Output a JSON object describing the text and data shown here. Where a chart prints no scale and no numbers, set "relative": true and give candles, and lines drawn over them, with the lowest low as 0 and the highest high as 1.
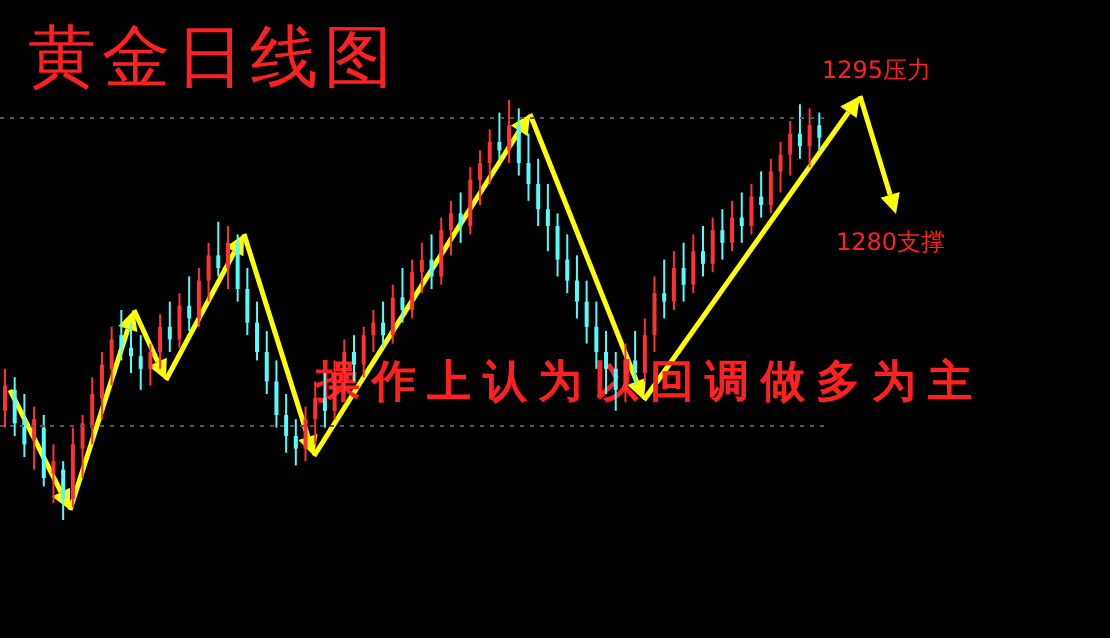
{
  "chart_data": {
    "type": "candlestick",
    "relative": true,
    "title": "黄金日线图",
    "annotations": [
      "操作上认为以回调做多为主",
      "1295压力",
      "1280支撑"
    ],
    "ref_lines": [
      {
        "axis": "y",
        "value": 0.957,
        "color": "#555555",
        "line_style": "dotted"
      },
      {
        "axis": "y",
        "value": 0.224,
        "color": "#555555",
        "line_style": "dotted"
      }
    ],
    "categories": [
      null,
      null,
      null,
      null,
      null,
      null,
      null,
      null,
      null,
      null,
      null,
      null,
      null,
      null,
      null,
      null,
      null,
      null,
      null,
      null,
      null,
      null,
      null,
      null,
      null,
      null,
      null,
      null,
      null,
      null,
      null,
      null,
      null,
      null,
      null,
      null,
      null,
      null,
      null,
      null,
      null,
      null,
      null,
      null,
      null,
      null,
      null,
      null,
      null,
      null,
      null,
      null,
      null,
      null,
      null,
      null,
      null,
      null,
      null,
      null,
      null,
      null,
      null,
      null,
      null,
      null,
      null,
      null,
      null,
      null,
      null,
      null,
      null,
      null,
      null,
      null,
      null,
      null,
      null,
      null,
      null,
      null,
      null,
      null,
      null
    ],
    "ohlc": [
      [
        0.26,
        0.36,
        0.22,
        0.32
      ],
      [
        0.31,
        0.34,
        0.2,
        0.23
      ],
      [
        0.24,
        0.3,
        0.15,
        0.18
      ],
      [
        0.19,
        0.27,
        0.12,
        0.24
      ],
      [
        0.22,
        0.25,
        0.08,
        0.1
      ],
      [
        0.11,
        0.18,
        0.04,
        0.14
      ],
      [
        0.12,
        0.14,
        0.0,
        0.05
      ],
      [
        0.05,
        0.22,
        0.03,
        0.18
      ],
      [
        0.17,
        0.25,
        0.1,
        0.23
      ],
      [
        0.22,
        0.34,
        0.18,
        0.3
      ],
      [
        0.29,
        0.4,
        0.24,
        0.37
      ],
      [
        0.36,
        0.46,
        0.32,
        0.43
      ],
      [
        0.44,
        0.5,
        0.38,
        0.41
      ],
      [
        0.41,
        0.47,
        0.35,
        0.39
      ],
      [
        0.39,
        0.44,
        0.31,
        0.36
      ],
      [
        0.36,
        0.42,
        0.32,
        0.4
      ],
      [
        0.4,
        0.49,
        0.36,
        0.46
      ],
      [
        0.46,
        0.52,
        0.4,
        0.43
      ],
      [
        0.43,
        0.54,
        0.41,
        0.51
      ],
      [
        0.51,
        0.58,
        0.45,
        0.48
      ],
      [
        0.48,
        0.6,
        0.46,
        0.57
      ],
      [
        0.57,
        0.66,
        0.52,
        0.63
      ],
      [
        0.63,
        0.71,
        0.58,
        0.6
      ],
      [
        0.6,
        0.7,
        0.55,
        0.66
      ],
      [
        0.66,
        0.68,
        0.52,
        0.55
      ],
      [
        0.55,
        0.6,
        0.44,
        0.47
      ],
      [
        0.47,
        0.52,
        0.38,
        0.4
      ],
      [
        0.4,
        0.45,
        0.3,
        0.33
      ],
      [
        0.33,
        0.38,
        0.22,
        0.25
      ],
      [
        0.25,
        0.3,
        0.16,
        0.2
      ],
      [
        0.2,
        0.24,
        0.13,
        0.17
      ],
      [
        0.17,
        0.27,
        0.14,
        0.24
      ],
      [
        0.24,
        0.33,
        0.18,
        0.29
      ],
      [
        0.29,
        0.35,
        0.22,
        0.26
      ],
      [
        0.26,
        0.38,
        0.24,
        0.35
      ],
      [
        0.35,
        0.43,
        0.3,
        0.4
      ],
      [
        0.4,
        0.44,
        0.33,
        0.37
      ],
      [
        0.37,
        0.46,
        0.34,
        0.44
      ],
      [
        0.44,
        0.5,
        0.4,
        0.47
      ],
      [
        0.47,
        0.52,
        0.41,
        0.44
      ],
      [
        0.44,
        0.56,
        0.42,
        0.53
      ],
      [
        0.53,
        0.6,
        0.47,
        0.5
      ],
      [
        0.5,
        0.62,
        0.48,
        0.59
      ],
      [
        0.59,
        0.66,
        0.54,
        0.62
      ],
      [
        0.62,
        0.68,
        0.55,
        0.58
      ],
      [
        0.58,
        0.72,
        0.56,
        0.69
      ],
      [
        0.69,
        0.76,
        0.63,
        0.73
      ],
      [
        0.73,
        0.78,
        0.66,
        0.7
      ],
      [
        0.7,
        0.84,
        0.68,
        0.81
      ],
      [
        0.81,
        0.88,
        0.75,
        0.85
      ],
      [
        0.85,
        0.93,
        0.8,
        0.9
      ],
      [
        0.9,
        0.97,
        0.86,
        0.88
      ],
      [
        0.88,
        1.0,
        0.85,
        0.94
      ],
      [
        0.94,
        0.98,
        0.82,
        0.85
      ],
      [
        0.85,
        0.92,
        0.76,
        0.8
      ],
      [
        0.8,
        0.86,
        0.7,
        0.74
      ],
      [
        0.74,
        0.8,
        0.64,
        0.7
      ],
      [
        0.7,
        0.73,
        0.58,
        0.62
      ],
      [
        0.62,
        0.68,
        0.54,
        0.57
      ],
      [
        0.57,
        0.63,
        0.48,
        0.52
      ],
      [
        0.52,
        0.57,
        0.42,
        0.46
      ],
      [
        0.46,
        0.52,
        0.36,
        0.4
      ],
      [
        0.4,
        0.45,
        0.3,
        0.36
      ],
      [
        0.36,
        0.4,
        0.26,
        0.31
      ],
      [
        0.31,
        0.42,
        0.28,
        0.38
      ],
      [
        0.38,
        0.45,
        0.32,
        0.35
      ],
      [
        0.35,
        0.48,
        0.33,
        0.44
      ],
      [
        0.44,
        0.58,
        0.4,
        0.54
      ],
      [
        0.54,
        0.62,
        0.48,
        0.52
      ],
      [
        0.52,
        0.64,
        0.5,
        0.6
      ],
      [
        0.6,
        0.66,
        0.52,
        0.56
      ],
      [
        0.56,
        0.68,
        0.54,
        0.64
      ],
      [
        0.64,
        0.7,
        0.58,
        0.61
      ],
      [
        0.61,
        0.72,
        0.59,
        0.69
      ],
      [
        0.69,
        0.74,
        0.62,
        0.66
      ],
      [
        0.66,
        0.76,
        0.64,
        0.72
      ],
      [
        0.72,
        0.78,
        0.66,
        0.7
      ],
      [
        0.7,
        0.8,
        0.68,
        0.77
      ],
      [
        0.77,
        0.83,
        0.72,
        0.75
      ],
      [
        0.75,
        0.86,
        0.73,
        0.83
      ],
      [
        0.83,
        0.9,
        0.78,
        0.87
      ],
      [
        0.87,
        0.95,
        0.82,
        0.92
      ],
      [
        0.92,
        0.99,
        0.86,
        0.89
      ],
      [
        0.89,
        0.98,
        0.84,
        0.94
      ],
      [
        0.94,
        0.97,
        0.88,
        0.91
      ]
    ],
    "colors": [
      "#ff3232",
      "#54fcfc",
      "#54fcfc",
      "#ff3232",
      "#54fcfc",
      "#ff3232",
      "#54fcfc",
      "#ff3232",
      "#ff3232",
      "#ff3232",
      "#ff3232",
      "#ff3232",
      "#54fcfc",
      "#54fcfc",
      "#54fcfc",
      "#ff3232",
      "#ff3232",
      "#54fcfc",
      "#ff3232",
      "#54fcfc",
      "#ff3232",
      "#ff3232",
      "#54fcfc",
      "#ff3232",
      "#54fcfc",
      "#54fcfc",
      "#54fcfc",
      "#54fcfc",
      "#54fcfc",
      "#54fcfc",
      "#54fcfc",
      "#ff3232",
      "#ff3232",
      "#54fcfc",
      "#ff3232",
      "#ff3232",
      "#54fcfc",
      "#ff3232",
      "#ff3232",
      "#54fcfc",
      "#ff3232",
      "#54fcfc",
      "#ff3232",
      "#ff3232",
      "#54fcfc",
      "#ff3232",
      "#ff3232",
      "#54fcfc",
      "#ff3232",
      "#ff3232",
      "#ff3232",
      "#54fcfc",
      "#ff3232",
      "#54fcfc",
      "#54fcfc",
      "#54fcfc",
      "#54fcfc",
      "#54fcfc",
      "#54fcfc",
      "#54fcfc",
      "#54fcfc",
      "#54fcfc",
      "#54fcfc",
      "#54fcfc",
      "#ff3232",
      "#54fcfc",
      "#ff3232",
      "#ff3232",
      "#54fcfc",
      "#ff3232",
      "#54fcfc",
      "#ff3232",
      "#54fcfc",
      "#ff3232",
      "#54fcfc",
      "#ff3232",
      "#54fcfc",
      "#ff3232",
      "#54fcfc",
      "#ff3232",
      "#ff3232",
      "#ff3232",
      "#54fcfc",
      "#ff3232",
      "#54fcfc"
    ]
  }
}
